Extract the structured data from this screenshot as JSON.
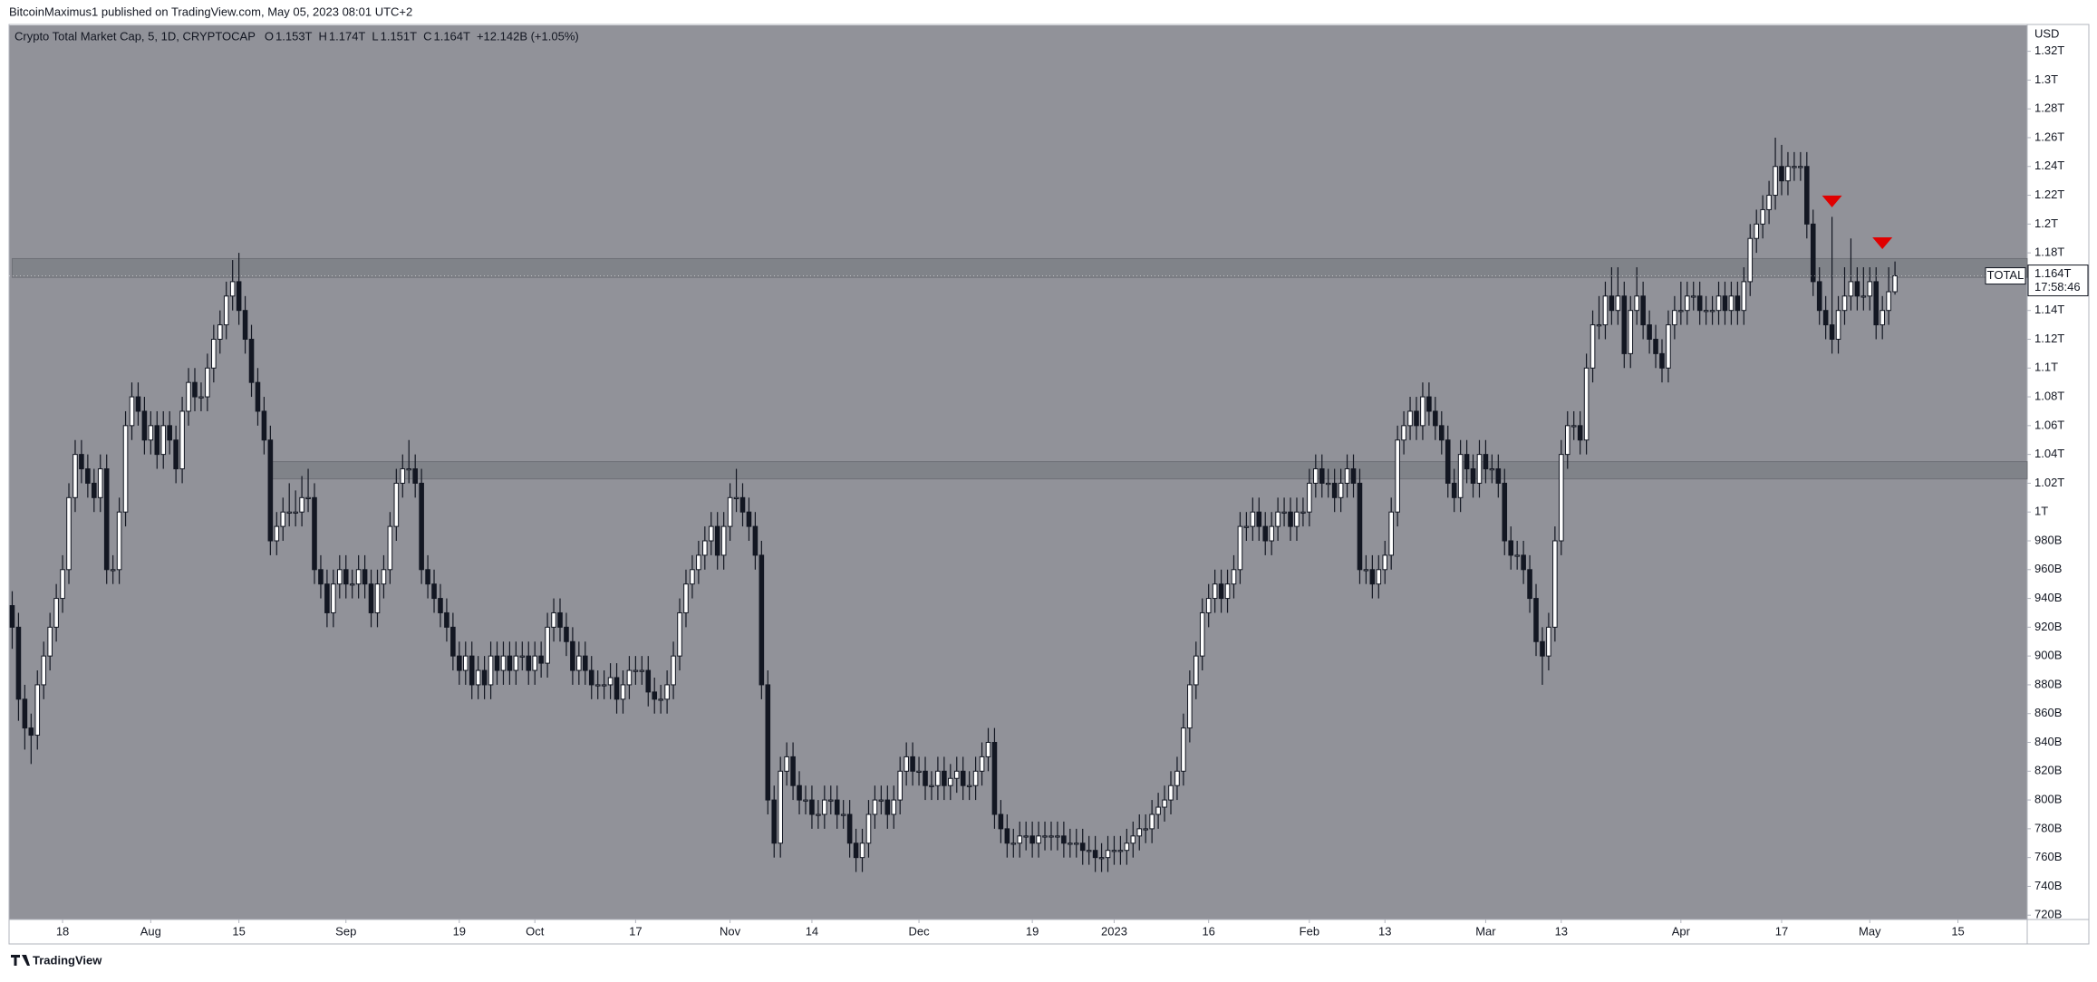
{
  "header": {
    "author_line": "BitcoinMaximus1 published on TradingView.com, May 05, 2023 08:01 UTC+2"
  },
  "footer": {
    "brand": "TradingView"
  },
  "chart_data": {
    "type": "candlestick",
    "title": "Crypto Total Market Cap, 5, 1D, CRYPTOCAP",
    "ohlc_labels": [
      "O",
      "1.153T",
      "H",
      "1.174T",
      "L",
      "1.151T",
      "C",
      "1.164T",
      "+12.142B (+1.05%)"
    ],
    "unit": "USD",
    "series_label": "TOTAL",
    "last_price_label": "1.164T",
    "countdown": "17:58:46",
    "up_color": "#ffffff",
    "down_color": "#131722",
    "zone_color": "#7b7d84",
    "marker_color": "#e00000",
    "xlim": [
      -0.5,
      320
    ],
    "ylim": [
      717,
      1338
    ],
    "xticks": [
      {
        "value": 8,
        "label": "18"
      },
      {
        "value": 22,
        "label": "Aug"
      },
      {
        "value": 36,
        "label": "15"
      },
      {
        "value": 53,
        "label": "Sep"
      },
      {
        "value": 71,
        "label": "19"
      },
      {
        "value": 83,
        "label": "Oct"
      },
      {
        "value": 99,
        "label": "17"
      },
      {
        "value": 114,
        "label": "Nov"
      },
      {
        "value": 127,
        "label": "14"
      },
      {
        "value": 144,
        "label": "Dec"
      },
      {
        "value": 162,
        "label": "19"
      },
      {
        "value": 175,
        "label": "2023"
      },
      {
        "value": 190,
        "label": "16"
      },
      {
        "value": 206,
        "label": "Feb"
      },
      {
        "value": 218,
        "label": "13"
      },
      {
        "value": 234,
        "label": "Mar"
      },
      {
        "value": 246,
        "label": "13"
      },
      {
        "value": 265,
        "label": "Apr"
      },
      {
        "value": 281,
        "label": "17"
      },
      {
        "value": 295,
        "label": "May"
      },
      {
        "value": 309,
        "label": "15"
      }
    ],
    "yticks": [
      {
        "value": 720,
        "label": "720B"
      },
      {
        "value": 740,
        "label": "740B"
      },
      {
        "value": 760,
        "label": "760B"
      },
      {
        "value": 780,
        "label": "780B"
      },
      {
        "value": 800,
        "label": "800B"
      },
      {
        "value": 820,
        "label": "820B"
      },
      {
        "value": 840,
        "label": "840B"
      },
      {
        "value": 860,
        "label": "860B"
      },
      {
        "value": 880,
        "label": "880B"
      },
      {
        "value": 900,
        "label": "900B"
      },
      {
        "value": 920,
        "label": "920B"
      },
      {
        "value": 940,
        "label": "940B"
      },
      {
        "value": 960,
        "label": "960B"
      },
      {
        "value": 980,
        "label": "980B"
      },
      {
        "value": 1000,
        "label": "1T"
      },
      {
        "value": 1020,
        "label": "1.02T"
      },
      {
        "value": 1040,
        "label": "1.04T"
      },
      {
        "value": 1060,
        "label": "1.06T"
      },
      {
        "value": 1080,
        "label": "1.08T"
      },
      {
        "value": 1100,
        "label": "1.1T"
      },
      {
        "value": 1120,
        "label": "1.12T"
      },
      {
        "value": 1140,
        "label": "1.14T"
      },
      {
        "value": 1160,
        "label": "1.16T"
      },
      {
        "value": 1180,
        "label": "1.18T"
      },
      {
        "value": 1200,
        "label": "1.2T"
      },
      {
        "value": 1220,
        "label": "1.22T"
      },
      {
        "value": 1240,
        "label": "1.24T"
      },
      {
        "value": 1260,
        "label": "1.26T"
      },
      {
        "value": 1280,
        "label": "1.28T"
      },
      {
        "value": 1300,
        "label": "1.3T"
      },
      {
        "value": 1320,
        "label": "1.32T"
      }
    ],
    "zones": [
      {
        "from": 0,
        "low": 1163,
        "high": 1176
      },
      {
        "from": 41,
        "low": 1023,
        "high": 1035
      }
    ],
    "markers": [
      {
        "x": 289,
        "y": 1216
      },
      {
        "x": 297,
        "y": 1187
      }
    ],
    "open": [
      935,
      920,
      870,
      850,
      845,
      880,
      900,
      920,
      940,
      960,
      1010,
      1040,
      1030,
      1020,
      1010,
      1030,
      960,
      960,
      1000,
      1060,
      1080,
      1070,
      1050,
      1060,
      1040,
      1060,
      1050,
      1030,
      1070,
      1090,
      1080,
      1080,
      1100,
      1120,
      1130,
      1150,
      1160,
      1140,
      1120,
      1090,
      1070,
      1050,
      980,
      990,
      1000,
      1000,
      1000,
      1010,
      1010,
      960,
      950,
      930,
      950,
      960,
      950,
      950,
      960,
      950,
      930,
      950,
      960,
      990,
      1020,
      1030,
      1030,
      1020,
      960,
      950,
      940,
      930,
      920,
      900,
      890,
      900,
      880,
      890,
      880,
      900,
      890,
      900,
      890,
      900,
      900,
      890,
      900,
      895,
      920,
      930,
      920,
      910,
      890,
      900,
      890,
      880,
      880,
      880,
      885,
      870,
      880,
      890,
      890,
      890,
      875,
      870,
      870,
      880,
      900,
      930,
      950,
      960,
      970,
      980,
      990,
      970,
      990,
      1010,
      1010,
      1000,
      990,
      970,
      880,
      800,
      770,
      820,
      830,
      810,
      800,
      800,
      790,
      790,
      800,
      800,
      790,
      790,
      770,
      760,
      770,
      790,
      800,
      800,
      790,
      800,
      820,
      830,
      820,
      820,
      810,
      810,
      820,
      810,
      815,
      820,
      810,
      810,
      820,
      830,
      840,
      790,
      780,
      770,
      770,
      775,
      775,
      770,
      775,
      775,
      775,
      775,
      770,
      770,
      770,
      765,
      765,
      760,
      760,
      765,
      765,
      765,
      770,
      775,
      780,
      780,
      790,
      795,
      800,
      810,
      820,
      850,
      880,
      900,
      930,
      940,
      950,
      940,
      950,
      960,
      990,
      990,
      1000,
      990,
      980,
      990,
      1000,
      1000,
      990,
      1000,
      1000,
      1020,
      1030,
      1020,
      1020,
      1010,
      1020,
      1030,
      1020,
      960,
      960,
      950,
      960,
      970,
      1000,
      1050,
      1060,
      1070,
      1060,
      1080,
      1070,
      1060,
      1050,
      1020,
      1010,
      1040,
      1030,
      1020,
      1040,
      1030,
      1030,
      1020,
      980,
      970,
      970,
      960,
      940,
      910,
      900,
      920,
      980,
      1040,
      1060,
      1060,
      1050,
      1100,
      1130,
      1130,
      1150,
      1140,
      1150,
      1110,
      1140,
      1150,
      1130,
      1120,
      1110,
      1100,
      1130,
      1140,
      1140,
      1150,
      1150,
      1140,
      1140,
      1140,
      1150,
      1140,
      1150,
      1140,
      1160,
      1190,
      1200,
      1210,
      1220,
      1240,
      1230,
      1240,
      1240,
      1240,
      1200,
      1160,
      1140,
      1130,
      1120,
      1140,
      1150,
      1160,
      1150,
      1150,
      1160,
      1130,
      1140,
      1153
    ],
    "high": [
      945,
      930,
      880,
      860,
      890,
      910,
      930,
      950,
      970,
      1020,
      1050,
      1050,
      1040,
      1030,
      1040,
      1040,
      970,
      1010,
      1070,
      1090,
      1090,
      1080,
      1070,
      1070,
      1070,
      1070,
      1060,
      1080,
      1100,
      1100,
      1090,
      1110,
      1130,
      1140,
      1160,
      1175,
      1180,
      1150,
      1130,
      1100,
      1080,
      1060,
      1000,
      1010,
      1020,
      1015,
      1025,
      1030,
      1020,
      970,
      960,
      960,
      970,
      970,
      960,
      970,
      970,
      960,
      960,
      970,
      1000,
      1030,
      1040,
      1050,
      1040,
      1030,
      970,
      960,
      950,
      940,
      930,
      910,
      910,
      910,
      900,
      900,
      910,
      910,
      910,
      910,
      910,
      910,
      910,
      910,
      910,
      930,
      940,
      940,
      930,
      920,
      910,
      910,
      900,
      890,
      890,
      895,
      895,
      890,
      900,
      900,
      900,
      900,
      885,
      880,
      890,
      910,
      940,
      960,
      970,
      980,
      990,
      1000,
      1000,
      1000,
      1020,
      1030,
      1020,
      1010,
      1000,
      980,
      890,
      810,
      830,
      840,
      840,
      820,
      810,
      810,
      800,
      810,
      810,
      810,
      800,
      800,
      780,
      780,
      800,
      810,
      810,
      810,
      810,
      830,
      840,
      840,
      830,
      830,
      820,
      830,
      830,
      825,
      830,
      830,
      820,
      830,
      840,
      850,
      850,
      800,
      790,
      780,
      785,
      785,
      785,
      785,
      785,
      785,
      785,
      785,
      780,
      780,
      780,
      775,
      775,
      770,
      775,
      775,
      775,
      780,
      785,
      790,
      790,
      800,
      805,
      810,
      820,
      830,
      860,
      890,
      910,
      940,
      950,
      960,
      960,
      960,
      970,
      1000,
      1000,
      1010,
      1010,
      1000,
      1000,
      1010,
      1010,
      1010,
      1010,
      1010,
      1030,
      1040,
      1040,
      1030,
      1030,
      1030,
      1040,
      1040,
      1030,
      970,
      970,
      970,
      980,
      1010,
      1060,
      1070,
      1080,
      1080,
      1090,
      1090,
      1080,
      1070,
      1060,
      1030,
      1050,
      1050,
      1040,
      1050,
      1050,
      1040,
      1040,
      1030,
      990,
      980,
      980,
      970,
      950,
      920,
      930,
      990,
      1050,
      1070,
      1070,
      1070,
      1110,
      1140,
      1150,
      1160,
      1170,
      1170,
      1160,
      1150,
      1170,
      1160,
      1140,
      1130,
      1120,
      1140,
      1150,
      1160,
      1160,
      1160,
      1160,
      1150,
      1150,
      1160,
      1160,
      1160,
      1160,
      1170,
      1200,
      1210,
      1220,
      1230,
      1260,
      1255,
      1250,
      1250,
      1250,
      1250,
      1210,
      1170,
      1150,
      1205,
      1150,
      1170,
      1190,
      1170,
      1170,
      1170,
      1170,
      1150,
      1170,
      1174
    ],
    "low": [
      905,
      855,
      835,
      825,
      835,
      870,
      890,
      910,
      930,
      950,
      1000,
      1020,
      1010,
      1000,
      1000,
      950,
      950,
      950,
      990,
      1050,
      1060,
      1040,
      1040,
      1030,
      1030,
      1040,
      1020,
      1020,
      1060,
      1070,
      1070,
      1070,
      1090,
      1110,
      1120,
      1140,
      1130,
      1110,
      1080,
      1060,
      1040,
      970,
      970,
      980,
      990,
      990,
      990,
      1000,
      950,
      940,
      920,
      920,
      940,
      940,
      940,
      940,
      940,
      920,
      920,
      940,
      950,
      980,
      1010,
      1020,
      1010,
      950,
      940,
      930,
      920,
      910,
      890,
      880,
      880,
      870,
      870,
      870,
      870,
      880,
      880,
      880,
      880,
      890,
      880,
      880,
      885,
      885,
      910,
      910,
      900,
      880,
      880,
      880,
      870,
      870,
      870,
      870,
      860,
      860,
      870,
      880,
      880,
      865,
      860,
      860,
      860,
      870,
      890,
      920,
      940,
      950,
      960,
      970,
      960,
      960,
      980,
      1000,
      990,
      980,
      960,
      870,
      790,
      760,
      760,
      810,
      800,
      790,
      790,
      780,
      780,
      780,
      790,
      780,
      780,
      760,
      750,
      750,
      760,
      780,
      790,
      780,
      780,
      790,
      810,
      810,
      810,
      800,
      800,
      800,
      800,
      800,
      805,
      800,
      800,
      800,
      810,
      820,
      780,
      770,
      760,
      760,
      760,
      765,
      760,
      760,
      765,
      765,
      765,
      760,
      760,
      760,
      755,
      755,
      750,
      750,
      750,
      755,
      755,
      755,
      760,
      765,
      770,
      770,
      780,
      785,
      790,
      800,
      810,
      840,
      870,
      890,
      920,
      930,
      930,
      930,
      940,
      950,
      980,
      980,
      980,
      970,
      970,
      980,
      990,
      980,
      980,
      990,
      990,
      1010,
      1010,
      1010,
      1000,
      1000,
      1010,
      1010,
      950,
      950,
      940,
      940,
      950,
      960,
      990,
      1040,
      1050,
      1050,
      1050,
      1060,
      1050,
      1040,
      1010,
      1000,
      1000,
      1020,
      1010,
      1010,
      1020,
      1020,
      1010,
      970,
      960,
      960,
      950,
      930,
      900,
      880,
      890,
      910,
      970,
      1030,
      1050,
      1040,
      1040,
      1090,
      1120,
      1120,
      1130,
      1130,
      1100,
      1100,
      1130,
      1120,
      1110,
      1100,
      1090,
      1090,
      1120,
      1130,
      1130,
      1140,
      1130,
      1130,
      1130,
      1130,
      1130,
      1130,
      1130,
      1130,
      1150,
      1180,
      1190,
      1200,
      1210,
      1220,
      1220,
      1230,
      1230,
      1190,
      1150,
      1130,
      1120,
      1110,
      1110,
      1130,
      1140,
      1140,
      1140,
      1140,
      1120,
      1120,
      1130,
      1151
    ],
    "close": [
      920,
      870,
      850,
      845,
      880,
      900,
      920,
      940,
      960,
      1010,
      1040,
      1030,
      1020,
      1010,
      1030,
      960,
      960,
      1000,
      1060,
      1080,
      1070,
      1050,
      1060,
      1040,
      1060,
      1050,
      1030,
      1070,
      1090,
      1080,
      1080,
      1100,
      1120,
      1130,
      1150,
      1160,
      1140,
      1120,
      1090,
      1070,
      1050,
      980,
      990,
      1000,
      1000,
      1000,
      1010,
      1010,
      960,
      950,
      930,
      950,
      960,
      950,
      950,
      960,
      950,
      930,
      950,
      960,
      990,
      1020,
      1030,
      1030,
      1020,
      960,
      950,
      940,
      930,
      920,
      900,
      890,
      900,
      880,
      890,
      880,
      900,
      890,
      900,
      890,
      900,
      900,
      890,
      900,
      895,
      920,
      930,
      920,
      910,
      890,
      900,
      890,
      880,
      880,
      880,
      885,
      870,
      880,
      890,
      890,
      890,
      875,
      870,
      870,
      880,
      900,
      930,
      950,
      960,
      970,
      980,
      990,
      970,
      990,
      1010,
      1010,
      1000,
      990,
      970,
      880,
      800,
      770,
      820,
      830,
      810,
      800,
      800,
      790,
      790,
      800,
      800,
      790,
      790,
      770,
      760,
      770,
      790,
      800,
      800,
      790,
      800,
      820,
      830,
      820,
      820,
      810,
      810,
      820,
      810,
      815,
      820,
      810,
      810,
      820,
      830,
      840,
      790,
      780,
      770,
      770,
      775,
      775,
      770,
      775,
      775,
      775,
      775,
      770,
      770,
      770,
      765,
      765,
      760,
      760,
      765,
      765,
      765,
      770,
      775,
      780,
      780,
      790,
      795,
      800,
      810,
      820,
      850,
      880,
      900,
      930,
      940,
      950,
      940,
      950,
      960,
      990,
      990,
      1000,
      990,
      980,
      990,
      1000,
      1000,
      990,
      1000,
      1000,
      1020,
      1030,
      1020,
      1020,
      1010,
      1020,
      1030,
      1020,
      960,
      960,
      950,
      960,
      970,
      1000,
      1050,
      1060,
      1070,
      1060,
      1080,
      1070,
      1060,
      1050,
      1020,
      1010,
      1040,
      1030,
      1020,
      1040,
      1030,
      1030,
      1020,
      980,
      970,
      970,
      960,
      940,
      910,
      900,
      920,
      980,
      1040,
      1060,
      1060,
      1050,
      1100,
      1130,
      1130,
      1150,
      1140,
      1150,
      1110,
      1140,
      1150,
      1130,
      1120,
      1110,
      1100,
      1130,
      1140,
      1140,
      1150,
      1150,
      1140,
      1140,
      1140,
      1150,
      1140,
      1150,
      1140,
      1160,
      1190,
      1200,
      1210,
      1220,
      1240,
      1230,
      1240,
      1240,
      1240,
      1200,
      1160,
      1140,
      1130,
      1120,
      1140,
      1150,
      1160,
      1150,
      1150,
      1160,
      1130,
      1140,
      1153,
      1164
    ]
  }
}
